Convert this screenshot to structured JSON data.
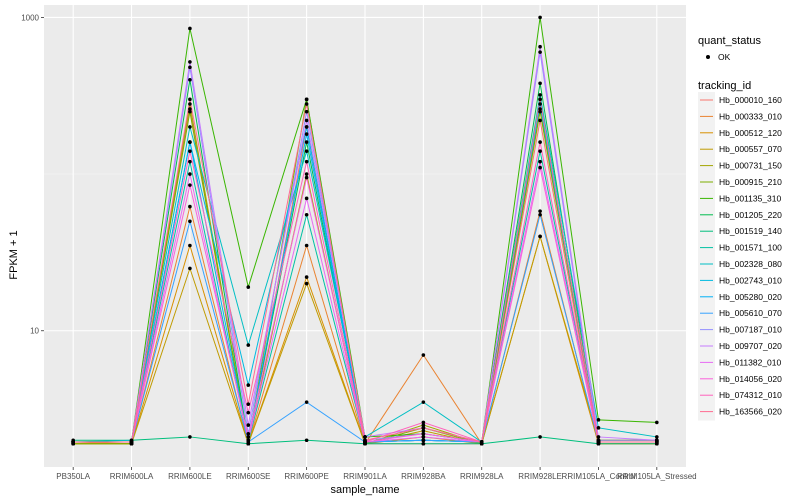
{
  "chart_data": {
    "type": "line",
    "xlabel": "sample_name",
    "ylabel": "FPKM + 1",
    "y_scale": "log10",
    "ylim": [
      1.35,
      1200
    ],
    "y_ticks": [
      {
        "value": 10,
        "label": "10"
      },
      {
        "value": 1000,
        "label": "1000"
      }
    ],
    "grid": true,
    "categories": [
      "PB350LA",
      "RRIM600LA",
      "RRIM600LE",
      "RRIM600SE",
      "RRIM600PE",
      "RRIM901LA",
      "RRIM928BA",
      "RRIM928LA",
      "RRIM928LE",
      "RRIM105LA_Control",
      "RRIM105LA_Stressed"
    ],
    "legend": {
      "position": "right",
      "quant_title": "quant_status",
      "quant_items": [
        "OK"
      ],
      "series_title": "tracking_id"
    },
    "series": [
      {
        "name": "Hb_000010_160",
        "color": "#F8766D",
        "values": [
          1.9,
          1.9,
          260,
          1.9,
          200,
          1.9,
          1.9,
          1.9,
          220,
          1.9,
          1.9
        ]
      },
      {
        "name": "Hb_000333_010",
        "color": "#EA8331",
        "values": [
          1.95,
          1.9,
          62,
          1.9,
          35,
          1.9,
          7.0,
          1.9,
          58,
          1.9,
          1.9
        ]
      },
      {
        "name": "Hb_000512_120",
        "color": "#D89000",
        "values": [
          1.9,
          1.9,
          35,
          1.9,
          22,
          1.9,
          2.1,
          1.9,
          40,
          1.9,
          1.9
        ]
      },
      {
        "name": "Hb_000557_070",
        "color": "#C09B00",
        "values": [
          1.9,
          1.9,
          25,
          1.9,
          20,
          1.9,
          2.3,
          1.9,
          40,
          2.0,
          2.0
        ]
      },
      {
        "name": "Hb_000731_150",
        "color": "#A3A500",
        "values": [
          1.9,
          1.9,
          280,
          1.9,
          100,
          1.9,
          2.5,
          1.9,
          260,
          2.0,
          2.0
        ]
      },
      {
        "name": "Hb_000915_210",
        "color": "#7CAE00",
        "values": [
          1.9,
          1.9,
          250,
          1.9,
          300,
          1.9,
          2.4,
          1.9,
          250,
          2.0,
          2.0
        ]
      },
      {
        "name": "Hb_001135_310",
        "color": "#39B600",
        "values": [
          1.95,
          1.95,
          850,
          19,
          300,
          2.1,
          2.2,
          1.95,
          1000,
          2.7,
          2.6
        ]
      },
      {
        "name": "Hb_001205_220",
        "color": "#00BB4E",
        "values": [
          1.95,
          1.95,
          400,
          1.95,
          160,
          1.95,
          2.0,
          1.95,
          380,
          1.95,
          1.95
        ]
      },
      {
        "name": "Hb_001519_140",
        "color": "#00BF7D",
        "values": [
          2.0,
          2.0,
          2.1,
          1.9,
          2.0,
          1.9,
          1.9,
          1.9,
          2.1,
          1.9,
          1.9
        ]
      },
      {
        "name": "Hb_001571_100",
        "color": "#00C1A3",
        "values": [
          1.95,
          1.95,
          120,
          1.95,
          55,
          1.95,
          2.0,
          1.95,
          140,
          1.95,
          1.95
        ]
      },
      {
        "name": "Hb_002328_080",
        "color": "#00BFC4",
        "values": [
          1.95,
          2.0,
          200,
          8.1,
          140,
          2.1,
          3.5,
          1.95,
          320,
          2.4,
          2.1
        ]
      },
      {
        "name": "Hb_002743_010",
        "color": "#00BAE0",
        "values": [
          1.95,
          1.95,
          160,
          4.5,
          200,
          1.95,
          2.0,
          1.95,
          300,
          1.95,
          1.95
        ]
      },
      {
        "name": "Hb_005280_020",
        "color": "#00B0F6",
        "values": [
          1.95,
          1.95,
          160,
          2.0,
          180,
          1.95,
          2.0,
          1.95,
          280,
          1.95,
          1.95
        ]
      },
      {
        "name": "Hb_005610_070",
        "color": "#35A2FF",
        "values": [
          1.95,
          1.95,
          50,
          1.95,
          3.5,
          1.95,
          2.0,
          1.95,
          55,
          1.95,
          1.95
        ]
      },
      {
        "name": "Hb_007187_010",
        "color": "#9590FF",
        "values": [
          1.95,
          1.95,
          480,
          2.2,
          250,
          2.0,
          2.2,
          1.95,
          600,
          2.0,
          2.0
        ]
      },
      {
        "name": "Hb_009707_020",
        "color": "#C77CFF",
        "values": [
          1.95,
          1.95,
          520,
          2.5,
          220,
          2.1,
          2.4,
          1.95,
          650,
          2.1,
          2.0
        ]
      },
      {
        "name": "Hb_011382_010",
        "color": "#E76BF3",
        "values": [
          1.95,
          1.95,
          100,
          2.0,
          70,
          1.95,
          2.1,
          1.95,
          120,
          1.95,
          1.95
        ]
      },
      {
        "name": "Hb_014056_020",
        "color": "#FA62DB",
        "values": [
          1.95,
          1.95,
          85,
          2.1,
          95,
          1.95,
          2.2,
          1.95,
          110,
          1.95,
          1.95
        ]
      },
      {
        "name": "Hb_074312_010",
        "color": "#FF62BC",
        "values": [
          1.95,
          1.95,
          140,
          3.0,
          120,
          1.95,
          2.6,
          1.95,
          160,
          1.95,
          1.95
        ]
      },
      {
        "name": "Hb_163566_020",
        "color": "#FF6C91",
        "values": [
          1.95,
          1.95,
          300,
          3.4,
          280,
          2.0,
          2.4,
          1.95,
          300,
          1.95,
          1.95
        ]
      }
    ]
  },
  "colors": {
    "panel": "#EBEBEB",
    "grid_major": "#FFFFFF",
    "grid_minor": "#F5F5F5",
    "point": "#000000"
  }
}
